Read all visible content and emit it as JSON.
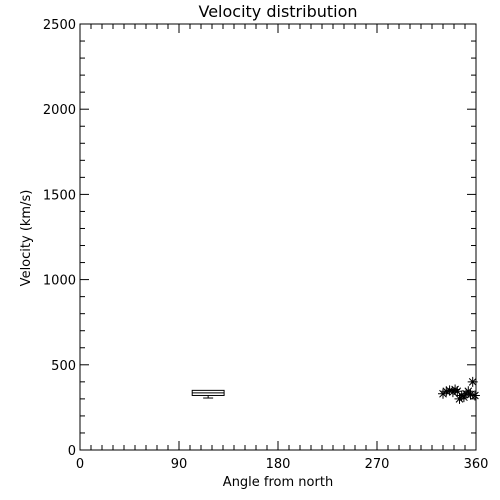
{
  "chart_data": {
    "type": "scatter",
    "title": "Velocity distribution",
    "xlabel": "Angle from north",
    "ylabel": "Velocity (km/s)",
    "xlim": [
      0,
      360
    ],
    "ylim": [
      0,
      2500
    ],
    "xticks": [
      0,
      90,
      180,
      270,
      360
    ],
    "xtick_labels": [
      "0",
      "90",
      "180",
      "270",
      "360"
    ],
    "yticks": [
      0,
      500,
      1000,
      1500,
      2000,
      2500
    ],
    "ytick_labels": [
      "0",
      "500",
      "1000",
      "1500",
      "2000",
      "2500"
    ],
    "x_minor_step": 10,
    "y_minor_step": 100,
    "grid": false,
    "boxplot": {
      "x_left": 102,
      "x_right": 131,
      "whisker_low": 305,
      "q1": 320,
      "median": 335,
      "q3": 350,
      "whisker_high": 350
    },
    "points": [
      {
        "x": 330,
        "y": 330
      },
      {
        "x": 333,
        "y": 345
      },
      {
        "x": 336,
        "y": 350
      },
      {
        "x": 339,
        "y": 340
      },
      {
        "x": 341,
        "y": 355
      },
      {
        "x": 343,
        "y": 345
      },
      {
        "x": 345,
        "y": 300
      },
      {
        "x": 347,
        "y": 320
      },
      {
        "x": 349,
        "y": 310
      },
      {
        "x": 351,
        "y": 330
      },
      {
        "x": 353,
        "y": 345
      },
      {
        "x": 355,
        "y": 325
      },
      {
        "x": 357,
        "y": 400
      },
      {
        "x": 359,
        "y": 320
      }
    ]
  }
}
